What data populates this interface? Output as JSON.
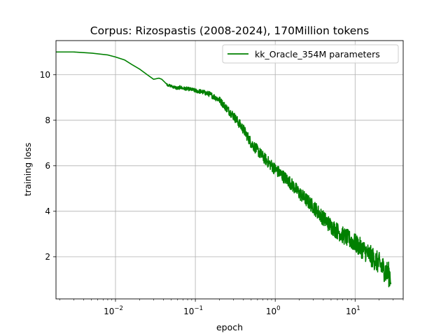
{
  "chart_data": {
    "type": "line",
    "title": "Corpus: Rizospastis (2008-2024), 170Million tokens",
    "xlabel": "epoch",
    "ylabel": "training loss",
    "xscale": "log",
    "xlim": [
      0.0018,
      40
    ],
    "ylim": [
      0.15,
      11.5
    ],
    "grid": true,
    "legend_position": "top-right",
    "x_ticks": [
      {
        "value": 0.01,
        "base": "10",
        "exp": "−2"
      },
      {
        "value": 0.1,
        "base": "10",
        "exp": "−1"
      },
      {
        "value": 1,
        "base": "10",
        "exp": "0"
      },
      {
        "value": 10,
        "base": "10",
        "exp": "1"
      }
    ],
    "y_ticks": [
      {
        "value": 2,
        "label": "2"
      },
      {
        "value": 4,
        "label": "4"
      },
      {
        "value": 6,
        "label": "6"
      },
      {
        "value": 8,
        "label": "8"
      },
      {
        "value": 10,
        "label": "10"
      }
    ],
    "series": [
      {
        "name": "kk_Oracle_354M parameters",
        "color": "#008000",
        "x": [
          0.0018,
          0.003,
          0.005,
          0.008,
          0.01,
          0.013,
          0.016,
          0.02,
          0.025,
          0.03,
          0.035,
          0.038,
          0.042,
          0.045,
          0.05,
          0.055,
          0.06,
          0.065,
          0.07,
          0.08,
          0.09,
          0.1,
          0.12,
          0.15,
          0.2,
          0.25,
          0.3,
          0.4,
          0.5,
          0.7,
          1.0,
          1.5,
          2.0,
          3.0,
          4.0,
          5.0,
          7.0,
          10.0,
          15.0,
          20.0,
          25.0,
          28.0
        ],
        "y": [
          11.0,
          11.0,
          10.95,
          10.87,
          10.78,
          10.65,
          10.45,
          10.25,
          10.0,
          9.8,
          9.85,
          9.8,
          9.65,
          9.55,
          9.5,
          9.45,
          9.4,
          9.45,
          9.4,
          9.38,
          9.35,
          9.3,
          9.25,
          9.15,
          8.9,
          8.5,
          8.2,
          7.6,
          7.0,
          6.4,
          5.85,
          5.3,
          4.8,
          4.2,
          3.7,
          3.35,
          2.95,
          2.6,
          2.1,
          1.7,
          1.3,
          1.15
        ],
        "noise": [
          0,
          0,
          0,
          0,
          0,
          0,
          0,
          0,
          0,
          0,
          0,
          0,
          0,
          0.05,
          0.06,
          0.07,
          0.08,
          0.08,
          0.08,
          0.08,
          0.08,
          0.09,
          0.1,
          0.12,
          0.15,
          0.18,
          0.2,
          0.22,
          0.24,
          0.25,
          0.27,
          0.28,
          0.3,
          0.32,
          0.34,
          0.36,
          0.38,
          0.42,
          0.46,
          0.5,
          0.55,
          0.55
        ]
      }
    ]
  }
}
